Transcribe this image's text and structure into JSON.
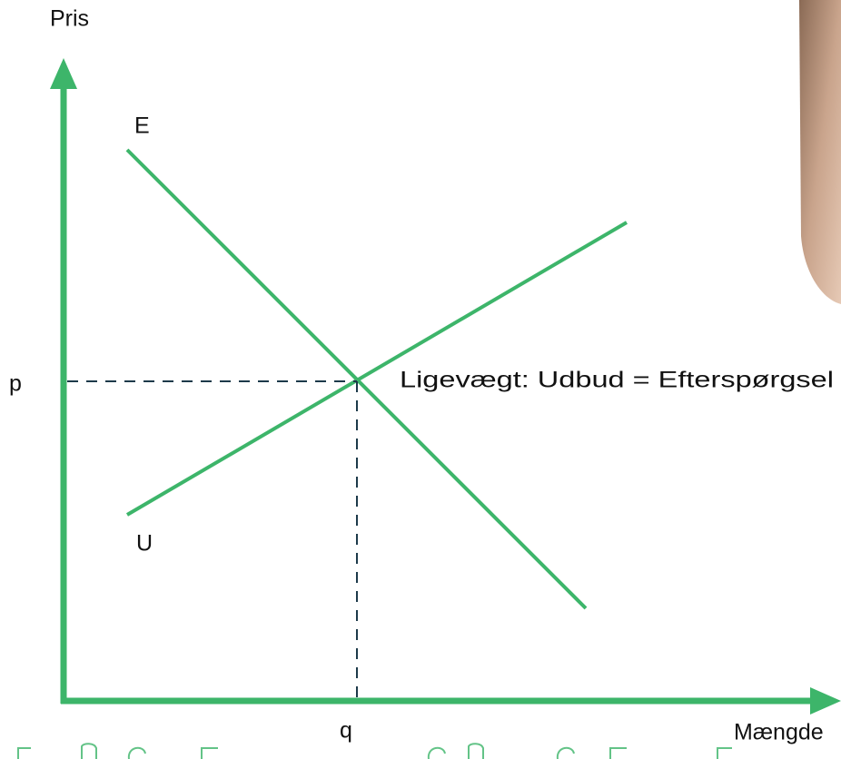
{
  "axes": {
    "y_label": "Pris",
    "x_label": "Mængde"
  },
  "curves": {
    "demand_label": "E",
    "supply_label": "U"
  },
  "equilibrium": {
    "price_label": "p",
    "quantity_label": "q",
    "label": "Ligevægt: Udbud = Efterspørgsel"
  }
}
